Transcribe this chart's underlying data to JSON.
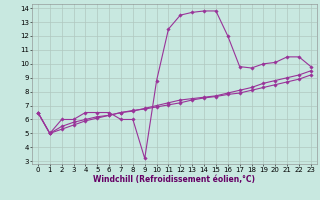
{
  "xlabel": "Windchill (Refroidissement éolien,°C)",
  "background_color": "#c8e8e0",
  "grid_color": "#b0c8c0",
  "line_color": "#993399",
  "x_hours": [
    0,
    1,
    2,
    3,
    4,
    5,
    6,
    7,
    8,
    9,
    10,
    11,
    12,
    13,
    14,
    15,
    16,
    17,
    18,
    19,
    20,
    21,
    22,
    23
  ],
  "line1_y": [
    6.5,
    5.0,
    6.0,
    6.0,
    6.5,
    6.5,
    6.5,
    6.0,
    6.0,
    3.2,
    8.8,
    12.5,
    13.5,
    13.7,
    13.8,
    13.8,
    12.0,
    9.8,
    9.7,
    10.0,
    10.1,
    10.5,
    10.5,
    9.8
  ],
  "line2_y": [
    6.5,
    5.0,
    5.5,
    5.8,
    6.0,
    6.2,
    6.3,
    6.5,
    6.6,
    6.8,
    7.0,
    7.2,
    7.4,
    7.5,
    7.6,
    7.7,
    7.9,
    8.1,
    8.3,
    8.6,
    8.8,
    9.0,
    9.2,
    9.5
  ],
  "line3_y": [
    6.5,
    5.0,
    5.3,
    5.6,
    5.9,
    6.1,
    6.3,
    6.5,
    6.65,
    6.75,
    6.9,
    7.05,
    7.2,
    7.4,
    7.55,
    7.65,
    7.8,
    7.9,
    8.1,
    8.3,
    8.5,
    8.7,
    8.9,
    9.2
  ],
  "ylim": [
    2.8,
    14.3
  ],
  "xlim": [
    -0.5,
    23.5
  ],
  "yticks": [
    3,
    4,
    5,
    6,
    7,
    8,
    9,
    10,
    11,
    12,
    13,
    14
  ],
  "xticks": [
    0,
    1,
    2,
    3,
    4,
    5,
    6,
    7,
    8,
    9,
    10,
    11,
    12,
    13,
    14,
    15,
    16,
    17,
    18,
    19,
    20,
    21,
    22,
    23
  ],
  "fontsize_xlabel": 5.5,
  "fontsize_ticks": 5.0,
  "marker_size": 1.8,
  "line_width": 0.8
}
